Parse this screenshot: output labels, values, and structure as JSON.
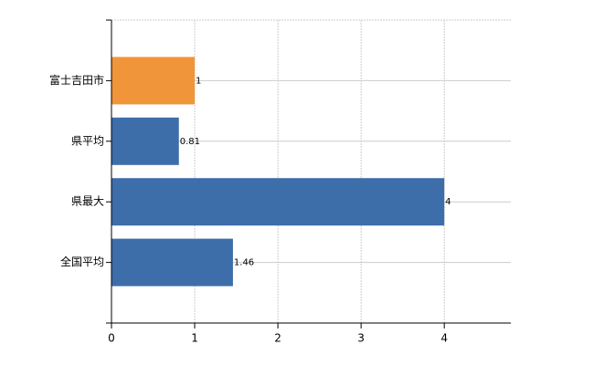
{
  "chart_data": {
    "type": "barh",
    "categories": [
      "富士吉田市",
      "県平均",
      "県最大",
      "全国平均"
    ],
    "values": [
      1,
      0.81,
      4,
      1.46
    ],
    "colors": [
      "#f0953a",
      "#3e6eaa",
      "#3e6eaa",
      "#3e6eaa"
    ],
    "xlim": [
      0,
      4.8
    ],
    "xticks": [
      0,
      1,
      2,
      3,
      4
    ],
    "grid": true
  }
}
